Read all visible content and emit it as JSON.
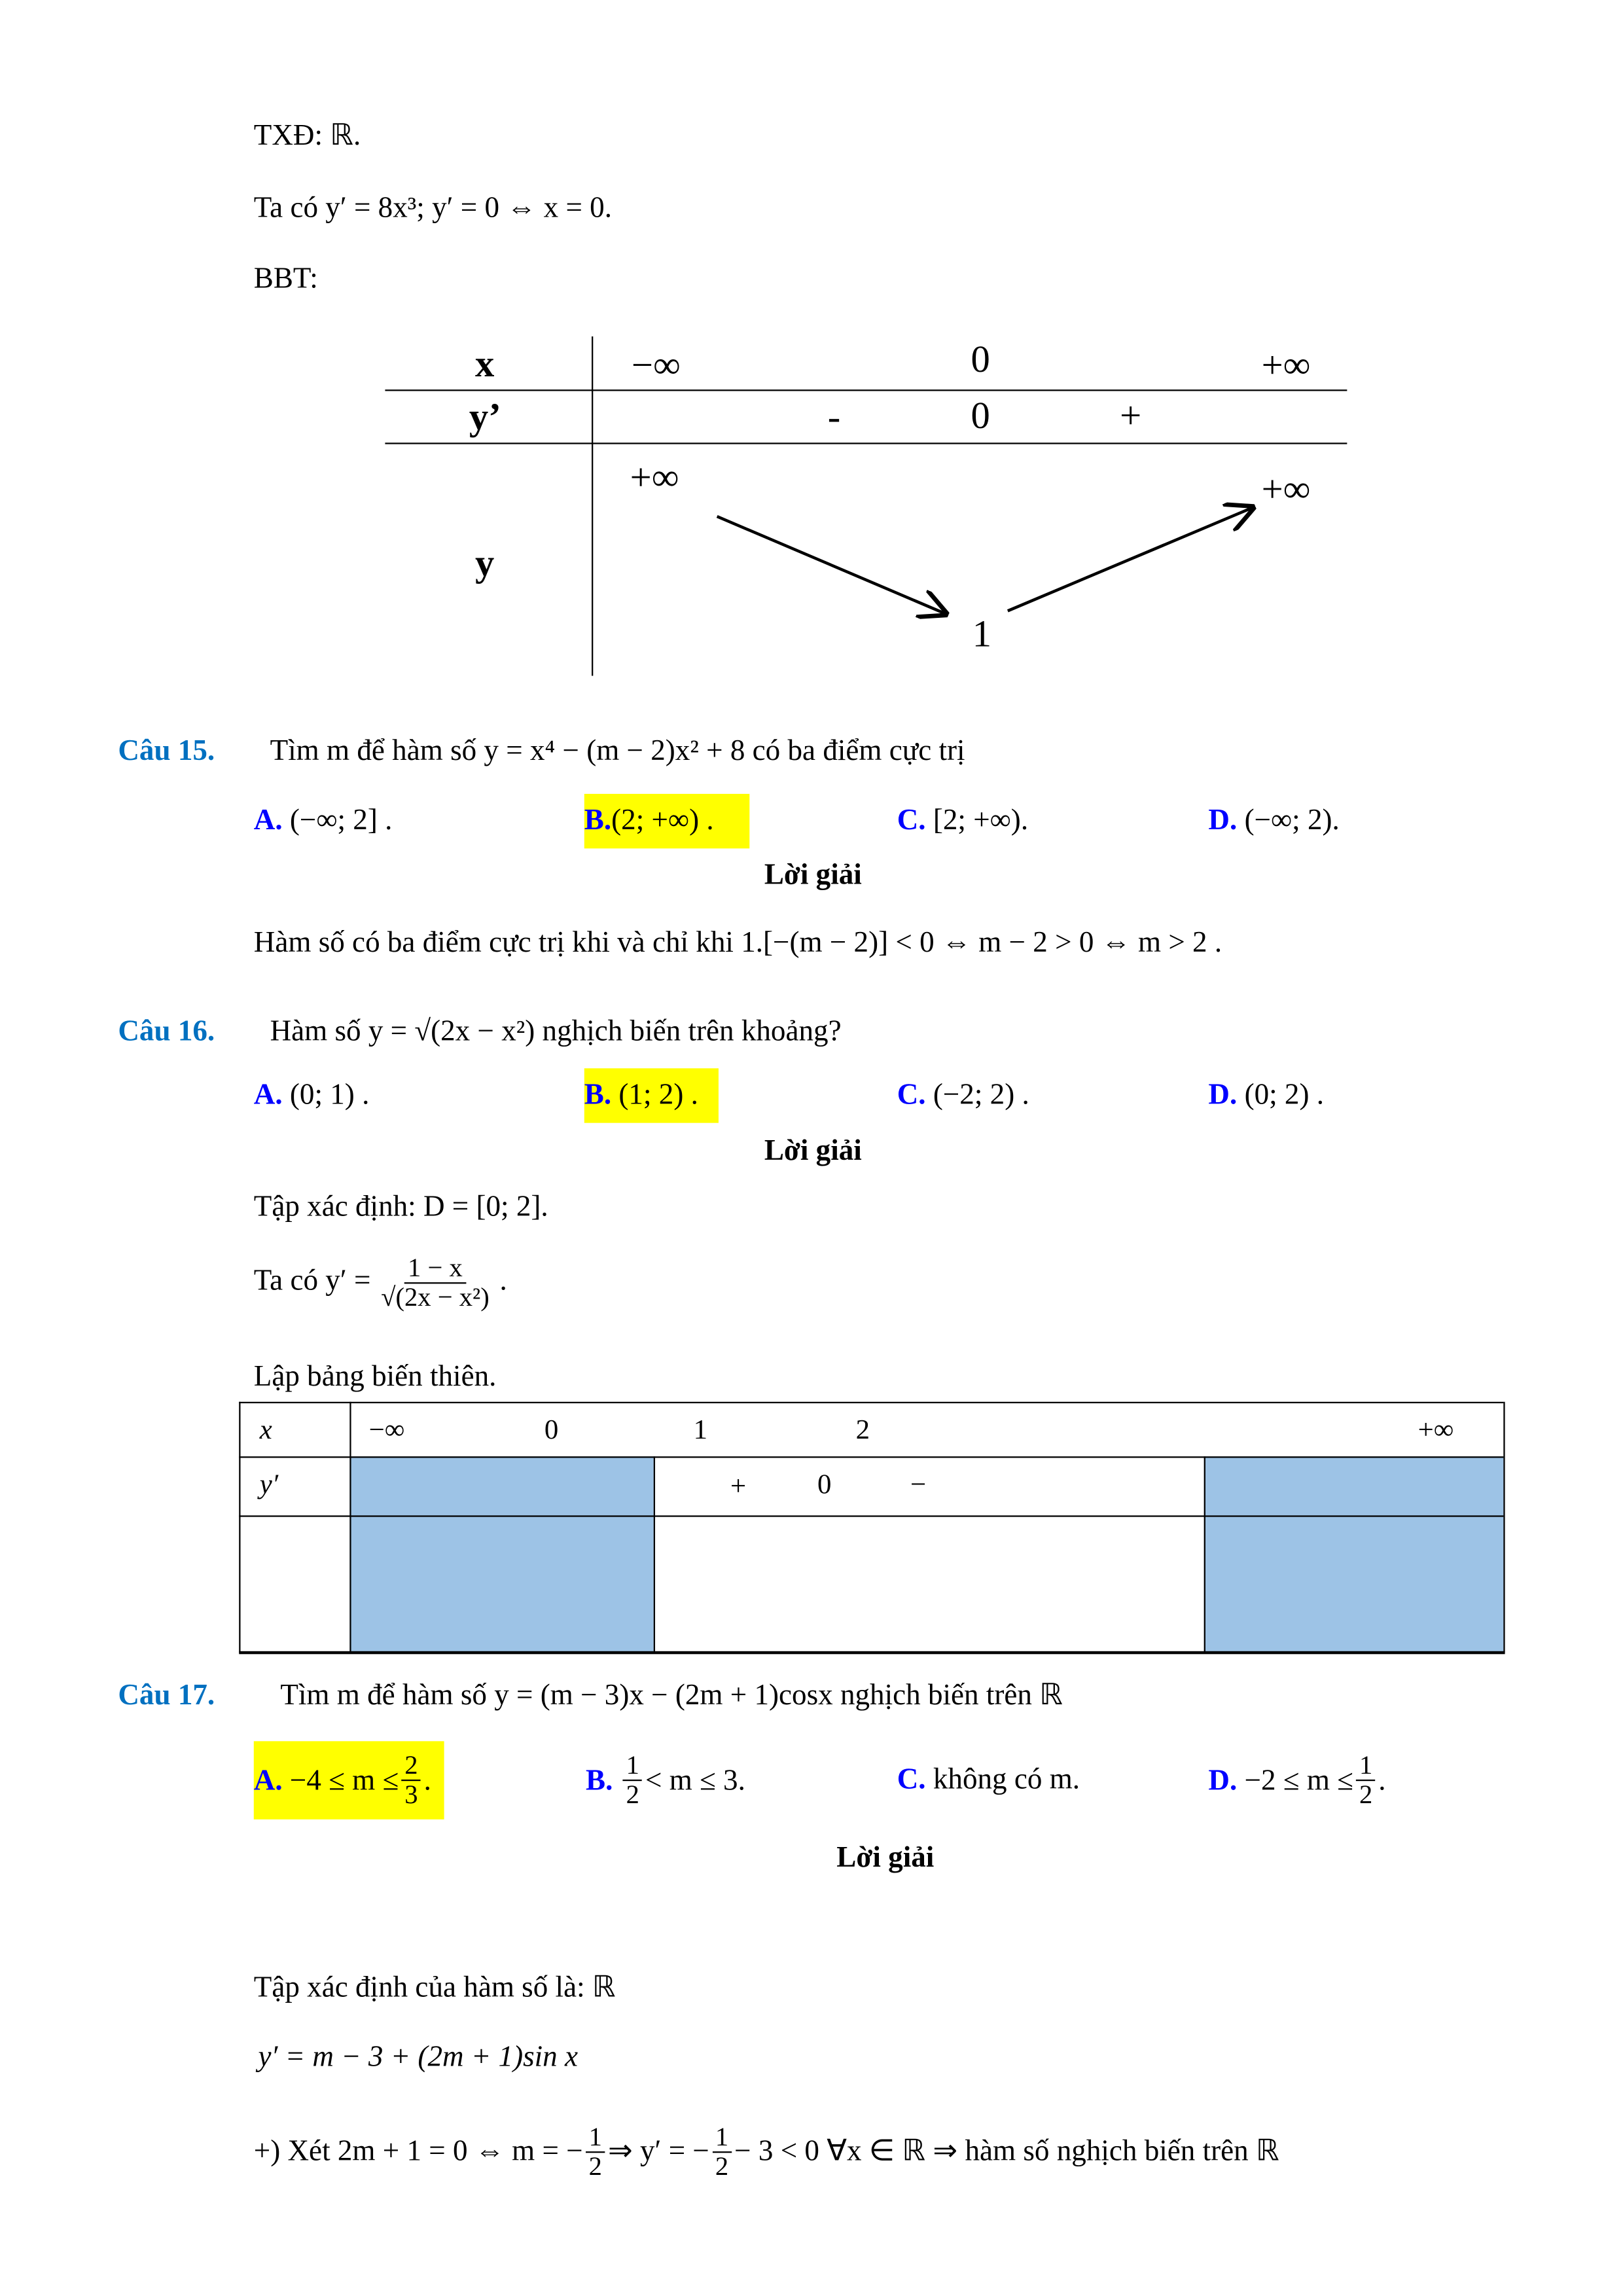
{
  "intro": {
    "domain_line": "TXĐ: ℝ.",
    "derivative_line": "Ta có  y′ = 8x³; y′ = 0 ⇔ x = 0.",
    "bbt_label": "BBT:"
  },
  "bbt1": {
    "row_labels": [
      "x",
      "y’",
      "y"
    ],
    "x_values": [
      "−∞",
      "0",
      "+∞"
    ],
    "yprime_values": [
      "-",
      "0",
      "+"
    ],
    "y_values": [
      "+∞",
      "1",
      "+∞"
    ]
  },
  "q15": {
    "number": "Câu 15.",
    "text": "Tìm  m  để hàm số  y = x⁴ − (m − 2)x² + 8  có ba điểm cực trị",
    "options": [
      {
        "label": "A.",
        "text": "(−∞; 2] ."
      },
      {
        "label": "B.",
        "text": "(2; +∞) ."
      },
      {
        "label": "C.",
        "text": "[2; +∞)."
      },
      {
        "label": "D.",
        "text": "(−∞; 2)."
      }
    ],
    "correct": "B",
    "solution_title": "Lời giải",
    "solution": "Hàm số có ba điểm cực trị khi và chỉ khi 1.[−(m − 2)] < 0 ⇔ m − 2 > 0 ⇔ m > 2 ."
  },
  "q16": {
    "number": "Câu 16.",
    "text": "Hàm số  y = √(2x − x²)  nghịch biến trên khoảng?",
    "options": [
      {
        "label": "A.",
        "text": "(0; 1) ."
      },
      {
        "label": "B.",
        "text": "(1; 2) ."
      },
      {
        "label": "C.",
        "text": "(−2; 2) ."
      },
      {
        "label": "D.",
        "text": "(0; 2) ."
      }
    ],
    "correct": "B",
    "solution_title": "Lời giải",
    "domain": "Tập xác định:  D = [0; 2].",
    "derivative_prefix": "Ta có  y′ =",
    "derivative_num": "1 − x",
    "derivative_den": "√(2x − x²)",
    "table_title": "Lập bảng biến thiên.",
    "table": {
      "row_labels": [
        "x",
        "y′"
      ],
      "x_values": [
        "−∞",
        "0",
        "1",
        "2",
        "+∞"
      ],
      "yprime_values": [
        "+",
        "0",
        "−"
      ]
    },
    "fill_color": "#9dc3e6"
  },
  "q17": {
    "number": "Câu 17.",
    "text": "Tìm m để hàm số  y = (m − 3)x − (2m + 1)cosx  nghịch biến trên  ℝ",
    "options": [
      {
        "label": "A.",
        "pre": "−4 ≤ m ≤",
        "num": "2",
        "den": "3",
        "post": "."
      },
      {
        "label": "B.",
        "pre": "",
        "num": "1",
        "den": "2",
        "post": "< m ≤ 3."
      },
      {
        "label": "C.",
        "text": "không có m."
      },
      {
        "label": "D.",
        "pre": "−2 ≤ m ≤",
        "num": "1",
        "den": "2",
        "post": "."
      }
    ],
    "correct": "A",
    "solution_title": "Lời giải",
    "domain": "Tập xác định của hàm số là:  ℝ",
    "derivative": "y′ = m − 3 + (2m + 1)sin x",
    "case": {
      "pre": "+) Xét  2m + 1 = 0 ⇔ m = −",
      "num1": "1",
      "den1": "2",
      "mid": "⇒ y′ = −",
      "num2": "1",
      "den2": "2",
      "post": "− 3 < 0 ∀x ∈ ℝ  ⇒  hàm số nghịch biến trên  ℝ"
    }
  },
  "colors": {
    "question": "#0070c0",
    "option_label": "#0000ff",
    "highlight": "#ffff00"
  }
}
